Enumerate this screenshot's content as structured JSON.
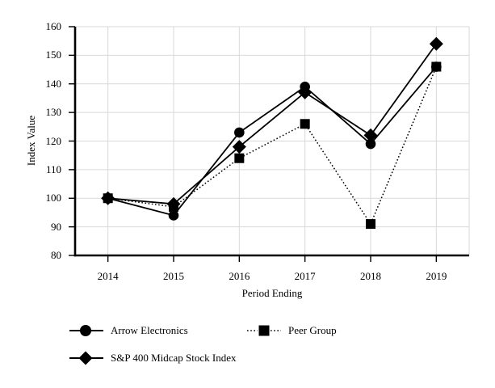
{
  "chart_data": {
    "type": "line",
    "title": "",
    "xlabel": "Period Ending",
    "ylabel": "Index Value",
    "x": [
      "2014",
      "2015",
      "2016",
      "2017",
      "2018",
      "2019"
    ],
    "ylim": [
      80,
      160
    ],
    "yticks": [
      80,
      90,
      100,
      110,
      120,
      130,
      140,
      150,
      160
    ],
    "grid": true,
    "legend_position": "below",
    "series": [
      {
        "name": "Arrow Electronics",
        "marker": "circle",
        "line": "solid",
        "values": [
          100,
          94,
          123,
          139,
          119,
          146
        ]
      },
      {
        "name": "Peer Group",
        "marker": "square",
        "line": "dotted",
        "values": [
          100,
          97,
          114,
          126,
          91,
          146
        ]
      },
      {
        "name": "S&P 400 Midcap Stock Index",
        "marker": "diamond",
        "line": "solid",
        "values": [
          100,
          98,
          118,
          137,
          122,
          154
        ]
      }
    ],
    "colors": {
      "series": "#000000",
      "grid": "#d9d9d9",
      "axis": "#000000",
      "background": "#ffffff"
    }
  }
}
